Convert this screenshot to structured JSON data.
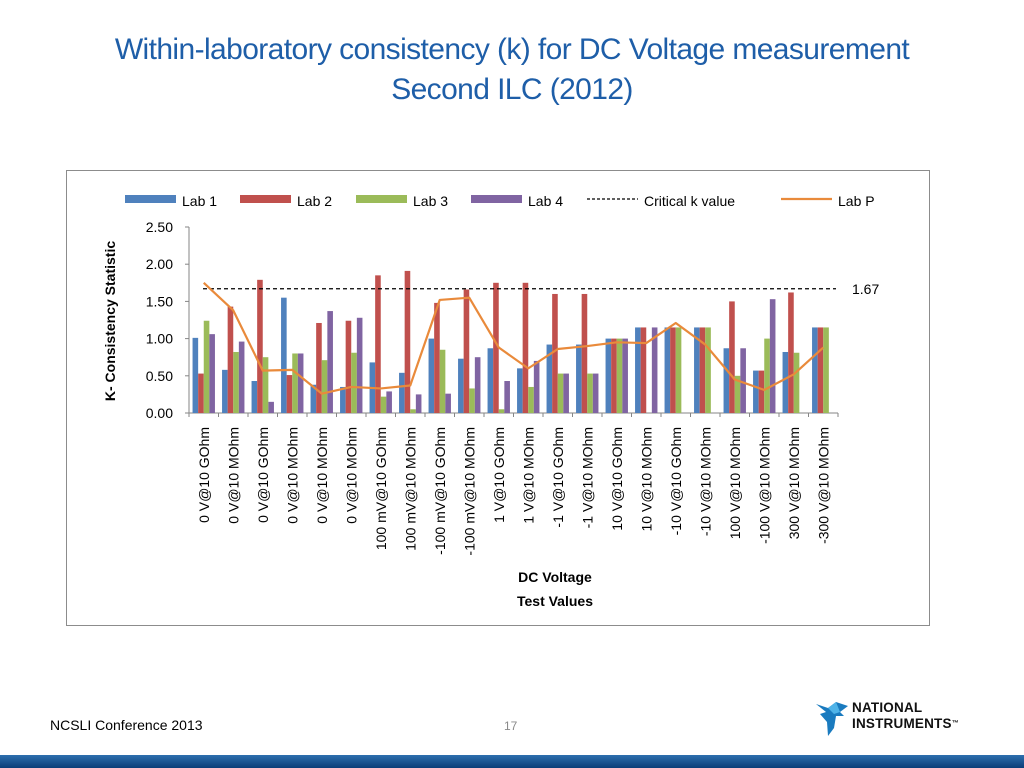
{
  "slide": {
    "title_line1": "Within-laboratory consistency (k) for DC Voltage measurement",
    "title_line2": "Second ILC (2012)",
    "footer_left": "NCSLI Conference 2013",
    "page_number": "17",
    "logo_line1": "NATIONAL",
    "logo_line2": "INSTRUMENTS",
    "logo_tm": "™"
  },
  "chart_data": {
    "type": "bar",
    "title": "",
    "xlabel_line1": "DC Voltage",
    "xlabel_line2": "Test Values",
    "ylabel": "K- Consistency Statistic",
    "ylim": [
      0,
      2.5
    ],
    "yticks": [
      "0.00",
      "0.50",
      "1.00",
      "1.50",
      "2.00",
      "2.50"
    ],
    "categories": [
      "0 V@10 GOhm",
      "0 V@10 MOhm",
      "0 V@10 GOhm",
      "0 V@10 MOhm",
      "0 V@10 MOhm",
      "0 V@10 MOhm",
      "100 mV@10 GOhm",
      "100 mV@10 MOhm",
      "-100 mV@10 GOhm",
      "-100 mV@10 MOhm",
      "1 V@10 GOhm",
      "1 V@10 MOhm",
      "-1 V@10 GOhm",
      "-1 V@10 MOhm",
      "10 V@10 GOhm",
      "10 V@10 MOhm",
      "-10 V@10 GOhm",
      "-10 V@10 MOhm",
      "100 V@10 MOhm",
      "-100 V@10 MOhm",
      "300 V@10 MOhm",
      "-300 V@10 MOhm"
    ],
    "series": [
      {
        "name": "Lab 1",
        "color": "#4f81bd",
        "values": [
          1.01,
          0.58,
          0.43,
          1.55,
          0.38,
          0.35,
          0.68,
          0.54,
          1.0,
          0.73,
          0.87,
          0.6,
          0.92,
          0.92,
          1.0,
          1.15,
          1.15,
          1.15,
          0.87,
          0.57,
          0.82,
          1.15
        ]
      },
      {
        "name": "Lab 2",
        "color": "#c0504d",
        "values": [
          0.53,
          1.43,
          1.79,
          0.51,
          1.21,
          1.24,
          1.85,
          1.91,
          1.48,
          1.66,
          1.75,
          1.75,
          1.6,
          1.6,
          1.0,
          1.15,
          1.15,
          1.15,
          1.5,
          0.57,
          1.62,
          1.15
        ]
      },
      {
        "name": "Lab 3",
        "color": "#9bbb59",
        "values": [
          1.24,
          0.82,
          0.75,
          0.8,
          0.71,
          0.81,
          0.22,
          0.05,
          0.85,
          0.33,
          0.05,
          0.35,
          0.53,
          0.53,
          1.0,
          0.0,
          1.15,
          1.15,
          0.5,
          1.0,
          0.81,
          1.15
        ]
      },
      {
        "name": "Lab 4",
        "color": "#8064a2",
        "values": [
          1.06,
          0.96,
          0.15,
          0.8,
          1.37,
          1.28,
          0.29,
          0.25,
          0.26,
          0.75,
          0.43,
          0.7,
          0.53,
          0.53,
          1.0,
          1.15,
          0.0,
          0.0,
          0.87,
          1.53,
          0.0,
          0.0
        ]
      }
    ],
    "critical_k": {
      "name": "Critical k value",
      "value": 1.67,
      "label": "1.67",
      "color": "#000000"
    },
    "line_series": {
      "name": "Lab P",
      "color": "#e98a3b",
      "values": [
        1.75,
        1.38,
        0.57,
        0.58,
        0.26,
        0.35,
        0.33,
        0.37,
        1.52,
        1.55,
        0.88,
        0.6,
        0.86,
        0.9,
        0.95,
        0.94,
        1.21,
        0.92,
        0.45,
        0.31,
        0.52,
        0.88
      ]
    },
    "legend_placement": "top",
    "grid": false
  }
}
